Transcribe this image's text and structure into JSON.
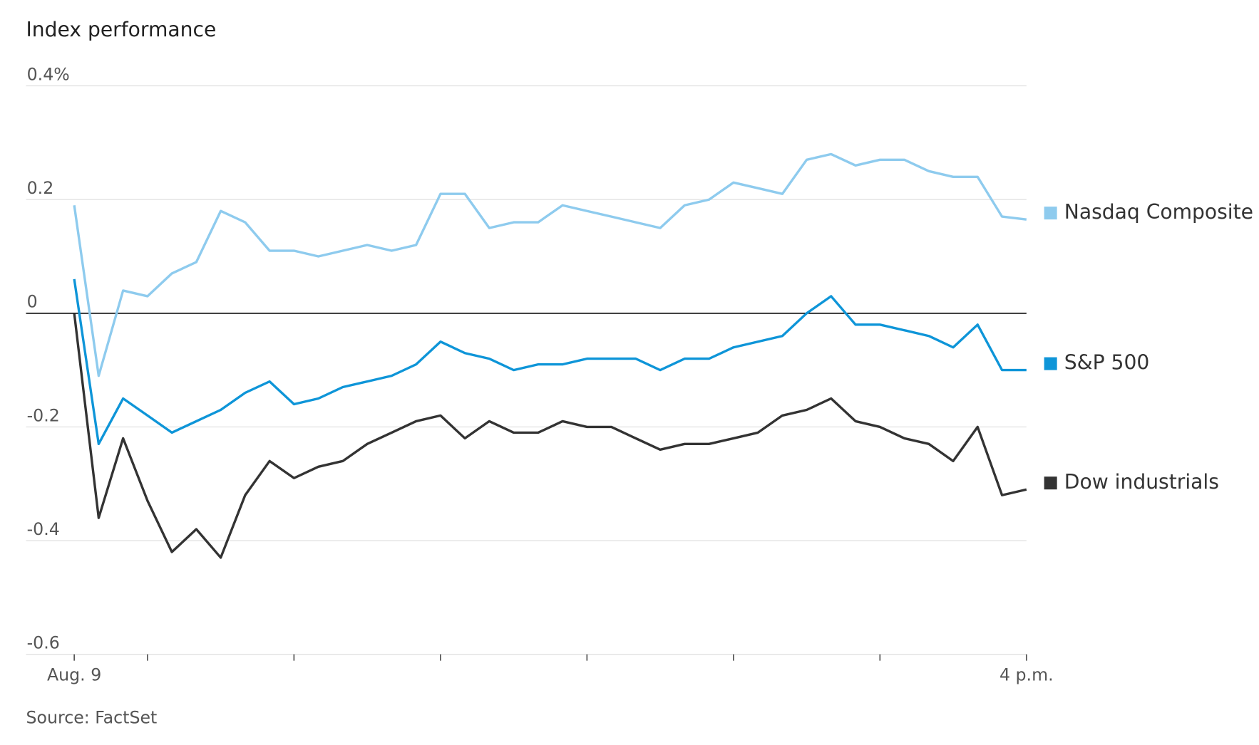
{
  "chart_data": {
    "type": "line",
    "title": "Index performance",
    "source": "Source: FactSet",
    "categories": [
      "Aug. 9",
      null,
      null,
      null,
      null,
      null,
      null,
      null,
      null,
      null,
      null,
      null,
      null,
      null,
      null,
      null,
      null,
      null,
      null,
      null,
      null,
      null,
      null,
      null,
      null,
      null,
      null,
      null,
      null,
      null,
      null,
      null,
      null,
      null,
      null,
      null,
      null,
      null,
      null,
      "4 p.m."
    ],
    "xticks": [
      0,
      3,
      9,
      15,
      21,
      27,
      33,
      39
    ],
    "ylim": [
      -0.6,
      0.4
    ],
    "yticks": [
      {
        "value": 0.4,
        "label": "0.4%"
      },
      0.2,
      0,
      -0.2,
      -0.4,
      -0.6
    ],
    "grid": true,
    "series": [
      {
        "name": "Nasdaq Composite",
        "color": "#8ecbee",
        "values": [
          0.19,
          -0.11,
          0.04,
          0.03,
          0.07,
          0.09,
          0.18,
          0.16,
          0.11,
          0.11,
          0.1,
          0.11,
          0.12,
          0.11,
          0.12,
          0.21,
          0.21,
          0.15,
          0.16,
          0.16,
          0.19,
          0.18,
          0.17,
          0.16,
          0.15,
          0.19,
          0.2,
          0.23,
          0.22,
          0.21,
          0.27,
          0.28,
          0.26,
          0.27,
          0.27,
          0.25,
          0.24,
          0.24,
          0.17,
          0.165
        ]
      },
      {
        "name": "S&P 500",
        "color": "#0e95d8",
        "values": [
          0.06,
          -0.23,
          -0.15,
          -0.18,
          -0.21,
          -0.19,
          -0.17,
          -0.14,
          -0.12,
          -0.16,
          -0.15,
          -0.13,
          -0.12,
          -0.11,
          -0.09,
          -0.05,
          -0.07,
          -0.08,
          -0.1,
          -0.09,
          -0.09,
          -0.08,
          -0.08,
          -0.08,
          -0.1,
          -0.08,
          -0.08,
          -0.06,
          -0.05,
          -0.04,
          0.0,
          0.03,
          -0.02,
          -0.02,
          -0.03,
          -0.04,
          -0.06,
          -0.02,
          -0.1,
          -0.1
        ]
      },
      {
        "name": "Dow industrials",
        "color": "#333333",
        "values": [
          0.0,
          -0.36,
          -0.22,
          -0.33,
          -0.42,
          -0.38,
          -0.43,
          -0.32,
          -0.26,
          -0.29,
          -0.27,
          -0.26,
          -0.23,
          -0.21,
          -0.19,
          -0.18,
          -0.22,
          -0.19,
          -0.21,
          -0.21,
          -0.19,
          -0.2,
          -0.2,
          -0.22,
          -0.24,
          -0.23,
          -0.23,
          -0.22,
          -0.21,
          -0.18,
          -0.17,
          -0.15,
          -0.19,
          -0.2,
          -0.22,
          -0.23,
          -0.26,
          -0.2,
          -0.32,
          -0.31
        ]
      }
    ]
  }
}
